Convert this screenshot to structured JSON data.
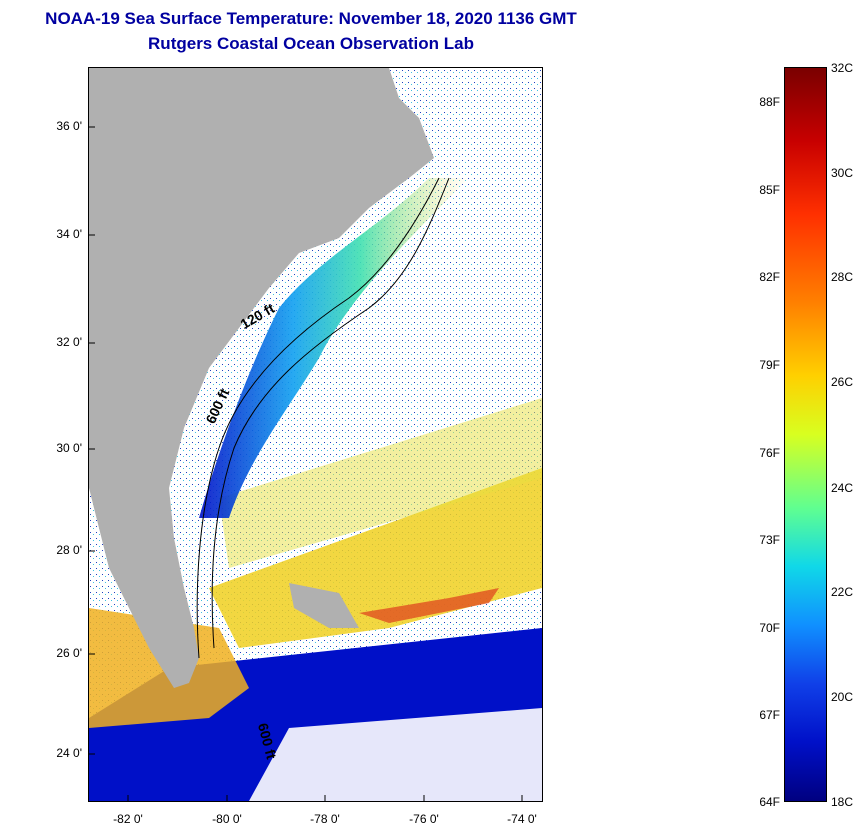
{
  "title": {
    "line1": "NOAA-19 Sea Surface Temperature:  November 18, 2020 1136 GMT",
    "line2": "Rutgers Coastal Ocean Observation Lab"
  },
  "map": {
    "lat_labels": [
      "36 0'",
      "34 0'",
      "32 0'",
      "30 0'",
      "28 0'",
      "26 0'",
      "24 0'"
    ],
    "lon_labels": [
      "-82 0'",
      "-80 0'",
      "-78 0'",
      "-76 0'",
      "-74 0'"
    ],
    "contour_labels": [
      "120 ft",
      "600 ft",
      "600 ft"
    ],
    "colors": {
      "land": "#b0b0b0",
      "water_cold": "#0010c8",
      "water_warm": "#ffd000",
      "cloud": "#ffffff"
    }
  },
  "colorbar": {
    "celsius_labels": [
      "32C",
      "30C",
      "28C",
      "26C",
      "24C",
      "22C",
      "20C",
      "18C"
    ],
    "fahrenheit_labels": [
      "88F",
      "85F",
      "82F",
      "79F",
      "76F",
      "73F",
      "70F",
      "67F",
      "64F"
    ]
  }
}
